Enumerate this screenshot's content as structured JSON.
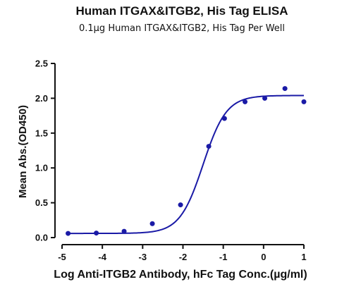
{
  "chart_data": {
    "type": "scatter",
    "title": "Human ITGAX&ITGB2, His Tag ELISA",
    "subtitle": "0.1µg Human ITGAX&ITGB2, His Tag Per Well",
    "xlabel": "Log Anti-ITGB2 Antibody, hFc Tag Conc.(µg/ml)",
    "ylabel": "Mean Abs.(OD450)",
    "xlim": [
      -5,
      1
    ],
    "ylim": [
      0,
      2.5
    ],
    "xticks": [
      "-5",
      "-4",
      "-3",
      "-2",
      "-1",
      "0",
      "1"
    ],
    "yticks": [
      "0.0",
      "0.5",
      "1.0",
      "1.5",
      "2.0",
      "2.5"
    ],
    "grid": false,
    "color": "#1a1aa6",
    "series": [
      {
        "x": [
          -4.85,
          -4.15,
          -3.46,
          -2.76,
          -2.06,
          -1.36,
          -0.97,
          -0.46,
          0.03,
          0.53,
          1.0
        ],
        "y": [
          0.06,
          0.065,
          0.09,
          0.2,
          0.47,
          1.31,
          1.71,
          1.95,
          2.0,
          2.14,
          1.95
        ]
      }
    ],
    "fit": {
      "model": "4PL",
      "bottom": 0.06,
      "top": 2.04,
      "logEC50": -1.5,
      "hill": 1.5
    }
  }
}
